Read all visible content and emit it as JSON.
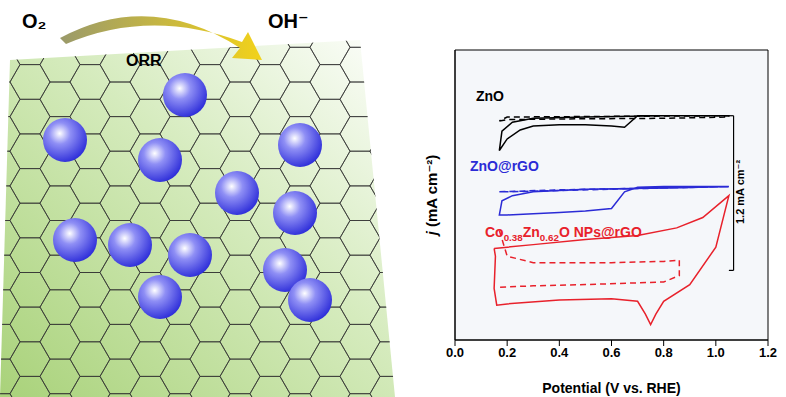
{
  "chart_data": {
    "type": "line",
    "x_label": "Potential (V vs. RHE)",
    "y_label": "j (mA cm⁻²)",
    "xlim": [
      0,
      1.2
    ],
    "xticks": [
      {
        "value": 0,
        "label": "0.0"
      },
      0.2,
      0.4,
      0.6,
      0.8,
      {
        "value": 1,
        "label": "1.0"
      },
      1.2
    ],
    "ylim": [
      0,
      2.25
    ],
    "yticks": [],
    "tick_labels": "x",
    "grid": false,
    "scale_bar": {
      "value": 1.2,
      "label": "1.2 mA cm⁻²"
    },
    "series": [
      {
        "name": "ZnO",
        "color": "#000000",
        "line_style": "solid",
        "x": [
          1.05,
          0.8,
          0.7,
          0.65,
          0.6,
          0.5,
          0.4,
          0.3,
          0.25,
          0.2,
          0.17,
          0.18,
          0.22,
          0.3,
          0.5,
          0.8,
          1.05
        ],
        "values": [
          1.74,
          1.74,
          1.74,
          1.65,
          1.66,
          1.67,
          1.67,
          1.66,
          1.63,
          1.56,
          1.47,
          1.62,
          1.69,
          1.72,
          1.73,
          1.74,
          1.74
        ]
      },
      {
        "name": "ZnO",
        "color": "#000000",
        "line_style": "dashed",
        "x": [
          0.17,
          0.2,
          0.4,
          0.8,
          1.05,
          1.05,
          0.6,
          0.2,
          0.17
        ],
        "values": [
          1.7,
          1.71,
          1.715,
          1.72,
          1.73,
          1.74,
          1.735,
          1.73,
          1.7
        ]
      },
      {
        "name": "ZnO@rGO",
        "color": "#2b2bd6",
        "line_style": "solid",
        "x": [
          1.05,
          0.8,
          0.7,
          0.65,
          0.6,
          0.5,
          0.4,
          0.3,
          0.2,
          0.17,
          0.18,
          0.22,
          0.3,
          0.5,
          0.8,
          1.05
        ],
        "values": [
          1.19,
          1.19,
          1.185,
          1.15,
          1.02,
          1.0,
          0.99,
          0.98,
          0.97,
          0.97,
          1.08,
          1.12,
          1.15,
          1.17,
          1.18,
          1.19
        ]
      },
      {
        "name": "ZnO@rGO",
        "color": "#2b2bd6",
        "line_style": "dashed",
        "x": [
          0.17,
          0.4,
          0.8,
          1.05,
          1.05,
          0.6,
          0.2,
          0.17
        ],
        "values": [
          1.15,
          1.165,
          1.18,
          1.19,
          1.19,
          1.17,
          1.15,
          1.15
        ]
      },
      {
        "name": "Co0.38Zn0.62O NPs@rGO",
        "color": "#e8212b",
        "line_style": "solid",
        "x": [
          0.15,
          0.3,
          0.5,
          0.7,
          0.85,
          0.95,
          1.05,
          1.0,
          0.9,
          0.8,
          0.77,
          0.75,
          0.73,
          0.7,
          0.6,
          0.4,
          0.2,
          0.16,
          0.15,
          0.155,
          0.15
        ],
        "values": [
          0.71,
          0.74,
          0.78,
          0.81,
          0.87,
          0.95,
          1.12,
          0.72,
          0.43,
          0.3,
          0.2,
          0.12,
          0.2,
          0.3,
          0.32,
          0.31,
          0.28,
          0.27,
          0.4,
          0.65,
          0.71
        ]
      },
      {
        "name": "Co0.38Zn0.62O NPs@rGO",
        "color": "#e8212b",
        "line_style": "dashed",
        "x": [
          0.17,
          0.2,
          0.3,
          0.6,
          0.8,
          0.86,
          0.86,
          0.8,
          0.5,
          0.3,
          0.17
        ],
        "values": [
          0.85,
          0.65,
          0.6,
          0.6,
          0.61,
          0.62,
          0.5,
          0.45,
          0.43,
          0.42,
          0.41
        ]
      }
    ]
  },
  "diagram": {
    "reactant": "O₂",
    "product": "OH⁻",
    "reaction": "ORR"
  }
}
